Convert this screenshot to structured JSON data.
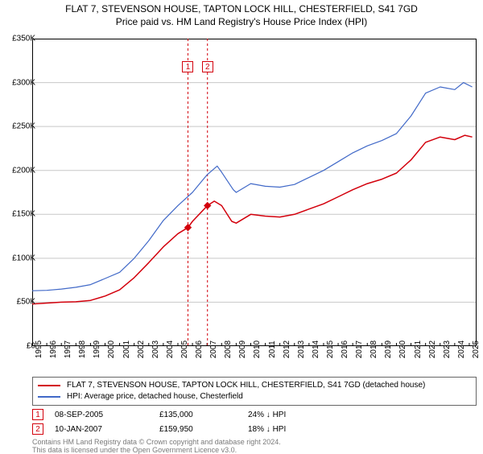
{
  "title": "FLAT 7, STEVENSON HOUSE, TAPTON LOCK HILL, CHESTERFIELD, S41 7GD",
  "subtitle": "Price paid vs. HM Land Registry's House Price Index (HPI)",
  "chart": {
    "type": "line",
    "background_color": "#ffffff",
    "plot_border_color": "#000000",
    "grid_color": "#c8c8c8",
    "axis_font_size": 10,
    "x": {
      "min": 1995,
      "max": 2025.5,
      "ticks": [
        1995,
        1996,
        1997,
        1998,
        1999,
        2000,
        2001,
        2002,
        2003,
        2004,
        2005,
        2006,
        2007,
        2008,
        2009,
        2010,
        2011,
        2012,
        2013,
        2014,
        2015,
        2016,
        2017,
        2018,
        2019,
        2020,
        2021,
        2022,
        2023,
        2024,
        2025
      ],
      "tick_labels": [
        "1995",
        "1996",
        "1997",
        "1998",
        "1999",
        "2000",
        "2001",
        "2002",
        "2003",
        "2004",
        "2005",
        "2006",
        "2007",
        "2008",
        "2009",
        "2010",
        "2011",
        "2012",
        "2013",
        "2014",
        "2015",
        "2016",
        "2017",
        "2018",
        "2019",
        "2020",
        "2021",
        "2022",
        "2023",
        "2024",
        "2025"
      ]
    },
    "y": {
      "min": 0,
      "max": 350000,
      "ticks": [
        0,
        50000,
        100000,
        150000,
        200000,
        250000,
        300000,
        350000
      ],
      "tick_labels": [
        "£0",
        "£50K",
        "£100K",
        "£150K",
        "£200K",
        "£250K",
        "£300K",
        "£350K"
      ]
    },
    "series": [
      {
        "name": "property",
        "label": "FLAT 7, STEVENSON HOUSE, TAPTON LOCK HILL, CHESTERFIELD, S41 7GD (detached house)",
        "color": "#d3000c",
        "line_width": 1.5,
        "data": [
          [
            1995,
            48000
          ],
          [
            1996,
            49000
          ],
          [
            1997,
            50000
          ],
          [
            1998,
            50500
          ],
          [
            1999,
            52000
          ],
          [
            2000,
            57000
          ],
          [
            2001,
            64000
          ],
          [
            2002,
            78000
          ],
          [
            2003,
            95000
          ],
          [
            2004,
            113000
          ],
          [
            2005,
            128000
          ],
          [
            2005.69,
            135000
          ],
          [
            2006,
            142000
          ],
          [
            2007.03,
            159950
          ],
          [
            2007.5,
            165000
          ],
          [
            2008,
            160000
          ],
          [
            2008.7,
            142000
          ],
          [
            2009,
            140000
          ],
          [
            2010,
            150000
          ],
          [
            2011,
            148000
          ],
          [
            2012,
            147000
          ],
          [
            2013,
            150000
          ],
          [
            2014,
            156000
          ],
          [
            2015,
            162000
          ],
          [
            2016,
            170000
          ],
          [
            2017,
            178000
          ],
          [
            2018,
            185000
          ],
          [
            2019,
            190000
          ],
          [
            2020,
            197000
          ],
          [
            2021,
            212000
          ],
          [
            2022,
            232000
          ],
          [
            2023,
            238000
          ],
          [
            2024,
            235000
          ],
          [
            2024.7,
            240000
          ],
          [
            2025.2,
            238000
          ]
        ]
      },
      {
        "name": "hpi",
        "label": "HPI: Average price, detached house, Chesterfield",
        "color": "#4169c8",
        "line_width": 1.2,
        "data": [
          [
            1995,
            63000
          ],
          [
            1996,
            63500
          ],
          [
            1997,
            65000
          ],
          [
            1998,
            67000
          ],
          [
            1999,
            70000
          ],
          [
            2000,
            77000
          ],
          [
            2001,
            84000
          ],
          [
            2002,
            100000
          ],
          [
            2003,
            120000
          ],
          [
            2004,
            143000
          ],
          [
            2005,
            160000
          ],
          [
            2006,
            175000
          ],
          [
            2007,
            195000
          ],
          [
            2007.7,
            205000
          ],
          [
            2008,
            198000
          ],
          [
            2008.8,
            178000
          ],
          [
            2009,
            175000
          ],
          [
            2010,
            185000
          ],
          [
            2011,
            182000
          ],
          [
            2012,
            181000
          ],
          [
            2013,
            184000
          ],
          [
            2014,
            192000
          ],
          [
            2015,
            200000
          ],
          [
            2016,
            210000
          ],
          [
            2017,
            220000
          ],
          [
            2018,
            228000
          ],
          [
            2019,
            234000
          ],
          [
            2020,
            242000
          ],
          [
            2021,
            262000
          ],
          [
            2022,
            288000
          ],
          [
            2023,
            295000
          ],
          [
            2024,
            292000
          ],
          [
            2024.6,
            300000
          ],
          [
            2025.2,
            295000
          ]
        ]
      }
    ],
    "sale_markers": [
      {
        "n": "1",
        "x": 2005.69,
        "y": 135000,
        "color": "#d3000c",
        "line_color": "#d3000c",
        "line_dash": "3,3"
      },
      {
        "n": "2",
        "x": 2007.03,
        "y": 159950,
        "color": "#d3000c",
        "line_color": "#d3000c",
        "line_dash": "3,3"
      }
    ],
    "top_marker_y": 72,
    "top_marker_boxes": [
      {
        "n": "1",
        "x": 2005.69,
        "color": "#d3000c"
      },
      {
        "n": "2",
        "x": 2007.03,
        "color": "#d3000c"
      }
    ]
  },
  "legend": {
    "border_color": "#666666",
    "rows": [
      {
        "color": "#d3000c",
        "text": "FLAT 7, STEVENSON HOUSE, TAPTON LOCK HILL, CHESTERFIELD, S41 7GD (detached house)"
      },
      {
        "color": "#4169c8",
        "text": "HPI: Average price, detached house, Chesterfield"
      }
    ]
  },
  "sales_table": {
    "rows": [
      {
        "n": "1",
        "marker_color": "#d3000c",
        "date": "08-SEP-2005",
        "price": "£135,000",
        "delta": "24% ↓ HPI"
      },
      {
        "n": "2",
        "marker_color": "#d3000c",
        "date": "10-JAN-2007",
        "price": "£159,950",
        "delta": "18% ↓ HPI"
      }
    ]
  },
  "footer": {
    "line1": "Contains HM Land Registry data © Crown copyright and database right 2024.",
    "line2": "This data is licensed under the Open Government Licence v3.0."
  }
}
